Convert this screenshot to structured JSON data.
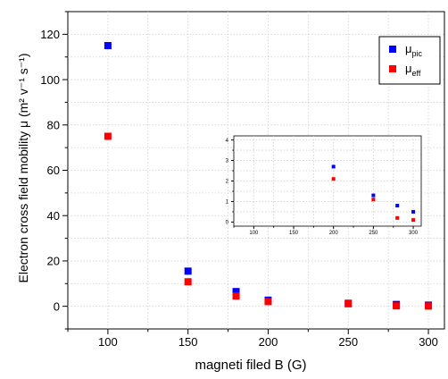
{
  "chart_data": [
    {
      "type": "scatter",
      "title": "",
      "xlabel": "magneti filed B (G)",
      "ylabel": "Electron cross field mobility μ (m² v⁻¹ s⁻¹)",
      "xlim": [
        75,
        310
      ],
      "ylim": [
        -10,
        130
      ],
      "xticks": [
        100,
        150,
        200,
        250,
        300
      ],
      "yticks": [
        0,
        20,
        40,
        60,
        80,
        100,
        120
      ],
      "grid": true,
      "legend_position": "top-right",
      "series": [
        {
          "name": "μpic",
          "legend_main": "μ",
          "legend_sub": "pic",
          "color": "#0000ff",
          "marker": "square",
          "x": [
            100,
            150,
            180,
            200,
            250,
            280,
            300
          ],
          "y": [
            115,
            15.5,
            6.5,
            2.7,
            1.3,
            0.8,
            0.5
          ]
        },
        {
          "name": "μeff",
          "legend_main": "μ",
          "legend_sub": "eff",
          "color": "#ff0000",
          "marker": "square",
          "x": [
            100,
            150,
            180,
            200,
            250,
            280,
            300
          ],
          "y": [
            75,
            10.8,
            4.5,
            2.1,
            1.1,
            0.2,
            0.1
          ]
        }
      ]
    },
    {
      "type": "scatter",
      "title": "",
      "inset": true,
      "xlabel": "",
      "ylabel": "",
      "xlim": [
        75,
        310
      ],
      "ylim": [
        -0.2,
        4.2
      ],
      "xticks": [
        100,
        150,
        200,
        250,
        300
      ],
      "yticks": [
        0,
        1,
        2,
        3,
        4
      ],
      "grid": true,
      "series": [
        {
          "name": "μpic",
          "color": "#0000ff",
          "marker": "square",
          "x": [
            200,
            250,
            280,
            300
          ],
          "y": [
            2.7,
            1.3,
            0.8,
            0.5
          ]
        },
        {
          "name": "μeff",
          "color": "#ff0000",
          "marker": "square",
          "x": [
            200,
            250,
            280,
            300
          ],
          "y": [
            2.1,
            1.1,
            0.2,
            0.1
          ]
        }
      ]
    }
  ]
}
